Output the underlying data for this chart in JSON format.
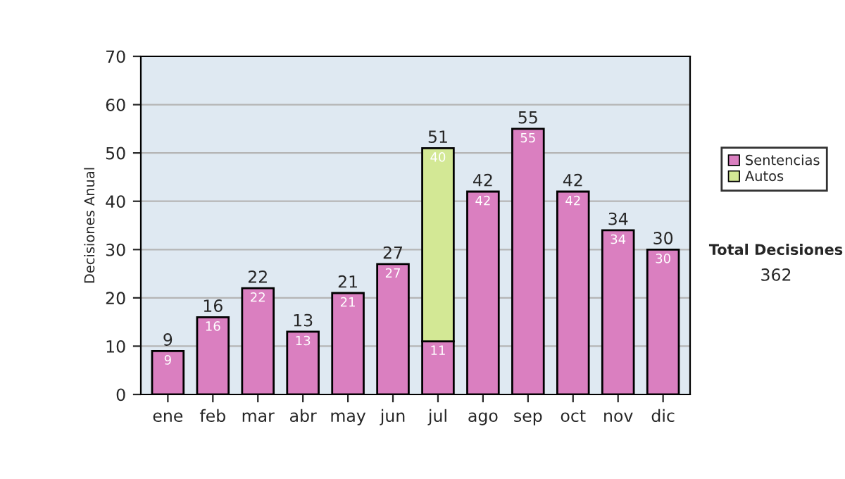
{
  "chart_data": {
    "type": "bar",
    "stacked": true,
    "ylabel": "Decisiones Anual",
    "categories": [
      "ene",
      "feb",
      "mar",
      "abr",
      "may",
      "jun",
      "jul",
      "ago",
      "sep",
      "oct",
      "nov",
      "dic"
    ],
    "series": [
      {
        "name": "Sentencias",
        "color": "#da7fc0",
        "values": [
          9,
          16,
          22,
          13,
          21,
          27,
          11,
          42,
          55,
          42,
          34,
          30
        ]
      },
      {
        "name": "Autos",
        "color": "#d3e895",
        "values": [
          null,
          null,
          null,
          null,
          null,
          null,
          40,
          null,
          null,
          null,
          null,
          null
        ]
      }
    ],
    "totals": [
      "9",
      "16",
      "22",
      "13",
      "21",
      "27",
      "51",
      "42",
      "55",
      "42",
      "34",
      "30"
    ],
    "data_labels": true,
    "ylim": [
      0,
      70
    ],
    "yticks": [
      0,
      10,
      20,
      30,
      40,
      50,
      60,
      70
    ],
    "grid": "y",
    "legend": "right",
    "annotations": [
      "Total Decisiones",
      "362"
    ]
  }
}
